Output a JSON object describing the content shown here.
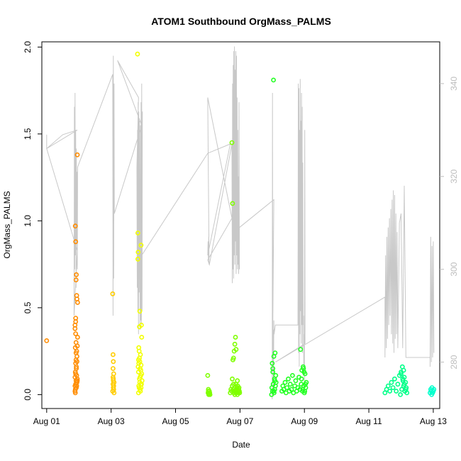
{
  "chart_data": {
    "type": "scatter",
    "title": "ATOM1 Southbound OrgMass_PALMS",
    "xlabel": "Date",
    "ylabel": "OrgMass_PALMS",
    "xlim_days": [
      0.85,
      13.2
    ],
    "ylim": [
      -0.08,
      2.03
    ],
    "x_tick_labels": [
      "Aug 01",
      "Aug 03",
      "Aug 05",
      "Aug 07",
      "Aug 09",
      "Aug 11",
      "Aug 13"
    ],
    "y_ticks": [
      "0.0",
      "0.5",
      "1.0",
      "1.5",
      "2.0"
    ],
    "y2_ticks": [
      "280",
      "300",
      "320",
      "340"
    ],
    "y2lim": [
      270,
      349
    ],
    "colors": {
      "series_line": "#c8c8c8",
      "right_axis": "#bdbdbd",
      "point_palette": [
        "#ff8c00",
        "#ffcc00",
        "#f2ff00",
        "#7fff00",
        "#22ff22",
        "#00ff88",
        "#00ffcc"
      ]
    },
    "series": [
      {
        "x": [
          1.0
        ],
        "y": [
          0.31
        ]
      },
      {
        "x": [
          1.88,
          1.88,
          1.88,
          1.88,
          1.89,
          1.89,
          1.89,
          1.89,
          1.9,
          1.9,
          1.9,
          1.9,
          1.9,
          1.91,
          1.91,
          1.91,
          1.91,
          1.92,
          1.92,
          1.92,
          1.93,
          1.93,
          1.93,
          1.94,
          1.94,
          1.94,
          1.95,
          1.95,
          1.95,
          1.96,
          1.96,
          1.88,
          1.89,
          1.9,
          1.91,
          1.92,
          1.93,
          1.94,
          1.9,
          1.95
        ],
        "y": [
          0.02,
          0.05,
          0.1,
          0.4,
          0.03,
          0.13,
          0.27,
          0.97,
          0.06,
          0.18,
          0.35,
          0.44,
          0.88,
          0.08,
          0.2,
          0.3,
          0.66,
          0.04,
          0.15,
          0.69,
          0.11,
          0.25,
          0.57,
          0.07,
          0.22,
          0.55,
          1.38,
          0.09,
          0.28,
          0.53,
          0.33,
          0.38,
          0.01,
          0.12,
          0.24,
          0.16,
          0.05,
          0.19,
          0.42,
          0.08
        ]
      },
      {
        "x": [
          3.05,
          3.05,
          3.06,
          3.06,
          3.06,
          3.07,
          3.07,
          3.07,
          3.08,
          3.08,
          3.08,
          3.09,
          3.09,
          3.06,
          3.07
        ],
        "y": [
          0.58,
          0.02,
          0.06,
          0.23,
          0.1,
          0.04,
          0.19,
          0.08,
          0.03,
          0.12,
          0.05,
          0.01,
          0.07,
          0.15,
          0.09
        ]
      },
      {
        "x": [
          3.82,
          3.83,
          3.83,
          3.84,
          3.85,
          3.85,
          3.86,
          3.86,
          3.87,
          3.87,
          3.88,
          3.88,
          3.89,
          3.89,
          3.9,
          3.9,
          3.91,
          3.91,
          3.92,
          3.92,
          3.93,
          3.93,
          3.94,
          3.95,
          3.95,
          3.96,
          3.84,
          3.86,
          3.88,
          3.9,
          3.92,
          3.94,
          3.85,
          3.89,
          3.93
        ],
        "y": [
          1.96,
          0.93,
          0.78,
          0.82,
          0.13,
          0.2,
          0.05,
          0.18,
          0.04,
          0.25,
          0.09,
          0.39,
          0.07,
          0.48,
          0.15,
          0.03,
          0.23,
          0.02,
          0.11,
          0.06,
          0.86,
          0.17,
          0.4,
          0.33,
          0.12,
          0.08,
          0.16,
          0.27,
          0.21,
          0.1,
          0.14,
          0.06,
          0.01,
          0.19,
          0.04
        ]
      },
      {
        "x": [
          6.0,
          6.01,
          6.02,
          6.03,
          6.04,
          6.05,
          6.06,
          6.07,
          6.02,
          6.05
        ],
        "y": [
          0.11,
          0.01,
          0.02,
          0.0,
          0.01,
          0.02,
          0.01,
          0.0,
          0.03,
          0.005
        ]
      },
      {
        "x": [
          6.7,
          6.72,
          6.74,
          6.75,
          6.76,
          6.77,
          6.78,
          6.79,
          6.8,
          6.81,
          6.82,
          6.83,
          6.84,
          6.85,
          6.86,
          6.87,
          6.88,
          6.89,
          6.9,
          6.91,
          6.92,
          6.93,
          6.94,
          6.95,
          6.96,
          6.97,
          6.98,
          6.99,
          6.76,
          6.8,
          6.84,
          6.88,
          6.92,
          6.96
        ],
        "y": [
          0.01,
          0.03,
          0.02,
          1.45,
          0.05,
          1.1,
          0.2,
          0.03,
          0.21,
          0.01,
          0.25,
          0.04,
          0.29,
          0.02,
          0.33,
          0.06,
          0.01,
          0.03,
          0.02,
          0.04,
          0.0,
          0.05,
          0.02,
          0.01,
          0.03,
          0.04,
          0.02,
          0.01,
          0.09,
          0.06,
          0.0,
          0.26,
          0.08,
          0.03
        ]
      },
      {
        "x": [
          7.98,
          7.99,
          8.0,
          8.01,
          8.02,
          8.03,
          8.04,
          8.05,
          8.06,
          8.07,
          8.08,
          8.09,
          8.1,
          8.11,
          8.12,
          8.02,
          8.05,
          8.08
        ],
        "y": [
          0.0,
          0.04,
          0.18,
          0.02,
          0.13,
          0.06,
          1.81,
          0.22,
          0.01,
          0.09,
          0.03,
          0.24,
          0.05,
          0.11,
          0.07,
          0.15,
          0.02,
          0.08
        ]
      },
      {
        "x": [
          8.3,
          8.33,
          8.36,
          8.4,
          8.43,
          8.46,
          8.5,
          8.53,
          8.56,
          8.6,
          8.63,
          8.66,
          8.7,
          8.73,
          8.76,
          8.8,
          8.83,
          8.86,
          8.9,
          8.92,
          8.94,
          8.96,
          8.98,
          9.0,
          9.02,
          9.04,
          9.06,
          8.88,
          8.91,
          8.95,
          8.99,
          9.03,
          8.97,
          9.01
        ],
        "y": [
          0.02,
          0.05,
          0.03,
          0.07,
          0.01,
          0.04,
          0.09,
          0.02,
          0.06,
          0.03,
          0.11,
          0.01,
          0.05,
          0.08,
          0.02,
          0.04,
          0.1,
          0.03,
          0.06,
          0.14,
          0.02,
          0.16,
          0.05,
          0.01,
          0.12,
          0.04,
          0.07,
          0.26,
          0.09,
          0.03,
          0.13,
          0.06,
          0.15,
          0.02
        ]
      },
      {
        "x": [
          11.5,
          11.55,
          11.6,
          11.65,
          11.7,
          11.75,
          11.8,
          11.85,
          11.9,
          11.95,
          12.0,
          12.02,
          12.04,
          12.06,
          12.08,
          12.1,
          12.12,
          12.14,
          12.16,
          12.18,
          12.0,
          12.05,
          12.1,
          12.15,
          11.98,
          12.08
        ],
        "y": [
          0.01,
          0.03,
          0.05,
          0.02,
          0.07,
          0.04,
          0.09,
          0.02,
          0.06,
          0.11,
          0.13,
          0.03,
          0.16,
          0.08,
          0.05,
          0.1,
          0.02,
          0.07,
          0.04,
          0.01,
          0.12,
          0.09,
          0.06,
          0.03,
          0.0,
          0.14
        ]
      },
      {
        "x": [
          12.9,
          12.92,
          12.94,
          12.96,
          12.98,
          13.0,
          13.02,
          12.95
        ],
        "y": [
          0.01,
          0.03,
          0.02,
          0.04,
          0.01,
          0.02,
          0.03,
          0.0
        ]
      }
    ],
    "line_y2": [
      [
        1.0,
        329
      ],
      [
        1.0,
        326
      ],
      [
        1.95,
        330
      ],
      [
        1.5,
        329
      ],
      [
        1.0,
        326
      ],
      [
        1.95,
        304
      ],
      [
        1.85,
        290
      ],
      [
        1.86,
        335
      ],
      [
        1.87,
        300
      ],
      [
        1.88,
        338
      ],
      [
        1.89,
        303
      ],
      [
        1.9,
        330
      ],
      [
        1.91,
        296
      ],
      [
        1.92,
        326
      ],
      [
        1.93,
        306
      ],
      [
        1.94,
        321
      ],
      [
        1.95,
        300
      ],
      [
        1.96,
        318
      ],
      [
        1.96,
        322
      ],
      [
        3.05,
        342
      ],
      [
        3.06,
        290
      ],
      [
        3.07,
        346
      ],
      [
        3.08,
        298
      ],
      [
        3.09,
        340
      ],
      [
        3.1,
        312
      ],
      [
        3.1,
        312
      ],
      [
        3.95,
        331
      ],
      [
        3.2,
        345
      ],
      [
        3.85,
        337
      ],
      [
        3.8,
        322
      ],
      [
        3.81,
        296
      ],
      [
        3.82,
        330
      ],
      [
        3.83,
        291
      ],
      [
        3.84,
        336
      ],
      [
        3.85,
        286
      ],
      [
        3.86,
        334
      ],
      [
        3.87,
        295
      ],
      [
        3.88,
        332
      ],
      [
        3.9,
        287
      ],
      [
        3.91,
        331
      ],
      [
        3.92,
        289
      ],
      [
        3.93,
        336
      ],
      [
        3.94,
        288
      ],
      [
        3.95,
        340
      ],
      [
        3.96,
        291
      ],
      [
        3.97,
        334
      ],
      [
        3.95,
        299
      ],
      [
        3.95,
        303
      ],
      [
        6.0,
        325
      ],
      [
        6.7,
        327
      ],
      [
        6.0,
        303
      ],
      [
        6.01,
        306
      ],
      [
        6.02,
        302
      ],
      [
        6.03,
        307
      ],
      [
        6.04,
        301
      ],
      [
        6.0,
        337
      ],
      [
        6.75,
        311
      ],
      [
        6.0,
        302
      ],
      [
        6.05,
        301
      ],
      [
        6.75,
        327
      ],
      [
        6.76,
        297
      ],
      [
        6.77,
        340
      ],
      [
        6.78,
        300
      ],
      [
        6.79,
        344
      ],
      [
        6.8,
        298
      ],
      [
        6.81,
        347
      ],
      [
        6.82,
        303
      ],
      [
        6.83,
        348
      ],
      [
        6.84,
        301
      ],
      [
        6.85,
        343
      ],
      [
        6.86,
        306
      ],
      [
        6.87,
        347
      ],
      [
        6.88,
        299
      ],
      [
        6.89,
        346
      ],
      [
        6.9,
        303
      ],
      [
        6.91,
        337
      ],
      [
        6.92,
        300
      ],
      [
        6.93,
        330
      ],
      [
        6.94,
        301
      ],
      [
        6.95,
        320
      ],
      [
        6.96,
        299
      ],
      [
        6.97,
        336
      ],
      [
        6.98,
        300
      ],
      [
        6.98,
        309
      ],
      [
        8.05,
        315
      ],
      [
        8.0,
        272
      ],
      [
        8.01,
        338
      ],
      [
        8.02,
        278
      ],
      [
        8.03,
        287
      ],
      [
        8.04,
        275
      ],
      [
        8.05,
        289
      ],
      [
        8.06,
        286
      ],
      [
        8.1,
        288
      ],
      [
        8.8,
        288
      ],
      [
        8.81,
        340
      ],
      [
        8.82,
        282
      ],
      [
        8.83,
        339
      ],
      [
        8.84,
        279
      ],
      [
        8.85,
        330
      ],
      [
        8.86,
        286
      ],
      [
        8.87,
        341
      ],
      [
        8.88,
        291
      ],
      [
        8.89,
        332
      ],
      [
        8.9,
        284
      ],
      [
        8.91,
        338
      ],
      [
        8.92,
        288
      ],
      [
        8.93,
        335
      ],
      [
        8.94,
        282
      ],
      [
        8.95,
        323
      ],
      [
        8.96,
        288
      ],
      [
        8.97,
        290
      ],
      [
        8.98,
        279
      ],
      [
        8.99,
        286
      ],
      [
        9.0,
        276
      ],
      [
        9.01,
        330
      ],
      [
        9.02,
        284
      ],
      [
        8.1,
        280
      ],
      [
        11.5,
        294
      ],
      [
        11.5,
        281
      ],
      [
        11.52,
        303
      ],
      [
        11.54,
        283
      ],
      [
        11.56,
        307
      ],
      [
        11.58,
        285
      ],
      [
        11.6,
        309
      ],
      [
        11.62,
        288
      ],
      [
        11.64,
        311
      ],
      [
        11.66,
        290
      ],
      [
        11.68,
        313
      ],
      [
        11.7,
        286
      ],
      [
        11.72,
        315
      ],
      [
        11.74,
        284
      ],
      [
        11.76,
        317
      ],
      [
        11.78,
        282
      ],
      [
        11.8,
        316
      ],
      [
        11.82,
        285
      ],
      [
        11.84,
        312
      ],
      [
        11.86,
        286
      ],
      [
        11.88,
        308
      ],
      [
        11.9,
        283
      ],
      [
        11.95,
        310
      ],
      [
        12.0,
        312
      ],
      [
        12.05,
        283
      ],
      [
        12.1,
        318
      ],
      [
        12.15,
        281
      ],
      [
        12.9,
        281
      ],
      [
        12.9,
        279
      ],
      [
        12.92,
        307
      ],
      [
        12.94,
        280
      ],
      [
        12.96,
        305
      ],
      [
        12.98,
        281
      ],
      [
        13.0,
        306
      ],
      [
        13.02,
        282
      ]
    ]
  }
}
